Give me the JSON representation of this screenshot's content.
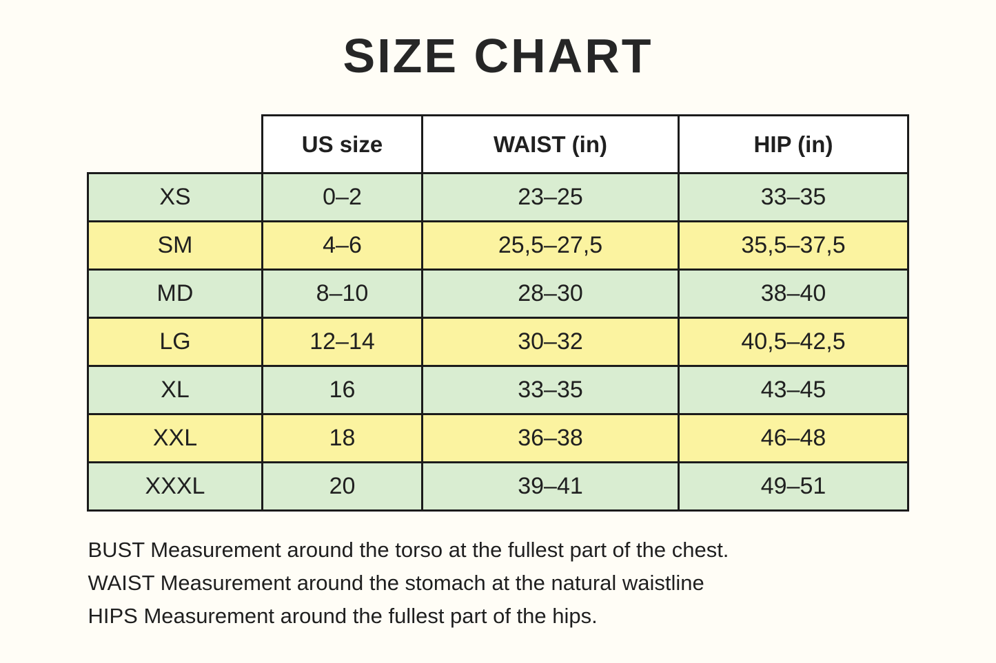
{
  "page_title": "SIZE CHART",
  "colors": {
    "page_background": "#fffdf6",
    "row_green": "#d9edd1",
    "row_yellow": "#fbf3a0",
    "header_background": "#ffffff",
    "border": "#1b1b1b",
    "text": "#202020"
  },
  "chart_data": {
    "type": "table",
    "title": "SIZE CHART",
    "columns": [
      "",
      "US size",
      "WAIST (in)",
      "HIP (in)"
    ],
    "rows": [
      {
        "size": "XS",
        "us_size": "0–2",
        "waist": "23–25",
        "hip": "33–35",
        "band": "green"
      },
      {
        "size": "SM",
        "us_size": "4–6",
        "waist": "25,5–27,5",
        "hip": "35,5–37,5",
        "band": "yellow"
      },
      {
        "size": "MD",
        "us_size": "8–10",
        "waist": "28–30",
        "hip": "38–40",
        "band": "green"
      },
      {
        "size": "LG",
        "us_size": "12–14",
        "waist": "30–32",
        "hip": "40,5–42,5",
        "band": "yellow"
      },
      {
        "size": "XL",
        "us_size": "16",
        "waist": "33–35",
        "hip": "43–45",
        "band": "green"
      },
      {
        "size": "XXL",
        "us_size": "18",
        "waist": "36–38",
        "hip": "46–48",
        "band": "yellow"
      },
      {
        "size": "XXXL",
        "us_size": "20",
        "waist": "39–41",
        "hip": "49–51",
        "band": "green"
      }
    ],
    "annotations": [
      "BUST Measurement around the torso at the fullest part of the chest.",
      "WAIST Measurement around the stomach at the natural waistline",
      "HIPS Measurement around the fullest part of the hips."
    ],
    "layout_hints": {
      "legend_position": "none",
      "grid": "full-borders",
      "row_band_pattern": "alternating green/yellow starting green"
    }
  }
}
